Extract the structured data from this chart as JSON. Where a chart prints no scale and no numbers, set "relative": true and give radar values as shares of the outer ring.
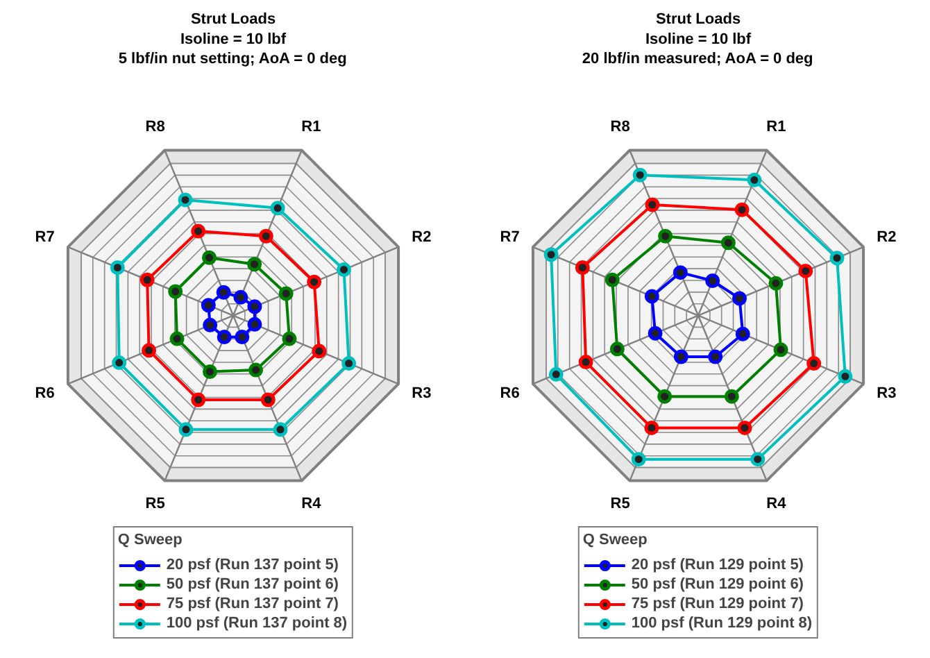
{
  "chart_data": [
    {
      "type": "radar",
      "title": "Strut Loads",
      "subtitle": "Isoline = 10 lbf\n5 lbf/in nut setting; AoA = 0 deg",
      "legend_title": "Q Sweep",
      "legend": "bottom",
      "marker": "circle",
      "grid": true,
      "relative": true,
      "categories": [
        "R1",
        "R2",
        "R3",
        "R4",
        "R5",
        "R6",
        "R7",
        "R8"
      ],
      "series": [
        {
          "name": "20 psf (Run 137 point 5)",
          "color": "#0000ff",
          "values": [
            0.11,
            0.13,
            0.13,
            0.13,
            0.13,
            0.14,
            0.15,
            0.14
          ]
        },
        {
          "name": "50 psf (Run 137 point 6)",
          "color": "#008000",
          "values": [
            0.31,
            0.32,
            0.34,
            0.33,
            0.34,
            0.34,
            0.35,
            0.35
          ]
        },
        {
          "name": "75 psf (Run 137 point 7)",
          "color": "#ff0000",
          "values": [
            0.48,
            0.49,
            0.52,
            0.51,
            0.51,
            0.51,
            0.52,
            0.51
          ]
        },
        {
          "name": "100 psf (Run 137 point 8)",
          "color": "#00bfbf",
          "values": [
            0.65,
            0.67,
            0.7,
            0.69,
            0.69,
            0.69,
            0.7,
            0.7
          ]
        }
      ]
    },
    {
      "type": "radar",
      "title": "Strut Loads",
      "subtitle": "Isoline = 10 lbf\n20 lbf/in measured; AoA = 0 deg",
      "legend_title": "Q Sweep",
      "legend": "bottom",
      "marker": "circle",
      "grid": true,
      "relative": true,
      "categories": [
        "R1",
        "R2",
        "R3",
        "R4",
        "R5",
        "R6",
        "R7",
        "R8"
      ],
      "series": [
        {
          "name": "20 psf (Run 129 point 5)",
          "color": "#0000ff",
          "values": [
            0.21,
            0.25,
            0.27,
            0.25,
            0.25,
            0.26,
            0.28,
            0.26
          ]
        },
        {
          "name": "50 psf (Run 129 point 6)",
          "color": "#008000",
          "values": [
            0.44,
            0.47,
            0.5,
            0.49,
            0.49,
            0.49,
            0.52,
            0.48
          ]
        },
        {
          "name": "75 psf (Run 129 point 7)",
          "color": "#ff0000",
          "values": [
            0.64,
            0.65,
            0.7,
            0.68,
            0.68,
            0.68,
            0.7,
            0.67
          ]
        },
        {
          "name": "100 psf (Run 129 point 8)",
          "color": "#00bfbf",
          "values": [
            0.82,
            0.84,
            0.89,
            0.87,
            0.87,
            0.86,
            0.89,
            0.85
          ]
        }
      ]
    }
  ]
}
